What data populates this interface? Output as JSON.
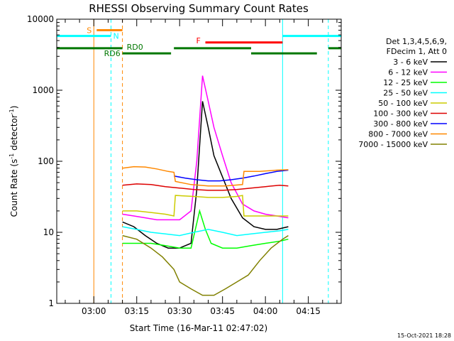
{
  "chart_data": {
    "type": "line",
    "title": "RHESSI Observing Summary Count Rates",
    "xlabel": "Start Time (16-Mar-11 02:47:02)",
    "ylabel_main": "Count Rate (s",
    "ylabel_sup1": "-1",
    "ylabel_mid": " detector",
    "ylabel_sup2": "-1",
    "ylabel_end": ")",
    "y_scale": "log",
    "ylim": [
      1,
      10000
    ],
    "xlim": [
      "02:47:02",
      "04:26:30"
    ],
    "x_ticks": [
      "03:00",
      "03:15",
      "03:30",
      "03:45",
      "04:00",
      "04:15"
    ],
    "y_ticks": [
      "1",
      "10",
      "100",
      "1000",
      "10000"
    ],
    "grid": false,
    "legend_header": [
      "Det 1,3,4,5,6,9,",
      "FDecim 1, Att 0"
    ],
    "series": [
      {
        "name": "3 - 6 keV",
        "color": "#000000",
        "points": [
          [
            "03:10",
            14
          ],
          [
            "03:14",
            12
          ],
          [
            "03:18",
            9
          ],
          [
            "03:22",
            7
          ],
          [
            "03:26",
            6
          ],
          [
            "03:30",
            6
          ],
          [
            "03:34",
            7
          ],
          [
            "03:36",
            40
          ],
          [
            "03:38",
            700
          ],
          [
            "03:40",
            300
          ],
          [
            "03:42",
            120
          ],
          [
            "03:45",
            60
          ],
          [
            "03:48",
            30
          ],
          [
            "03:52",
            16
          ],
          [
            "03:56",
            12
          ],
          [
            "04:00",
            11
          ],
          [
            "04:04",
            11
          ],
          [
            "04:08",
            12
          ]
        ]
      },
      {
        "name": "6 - 12 keV",
        "color": "#ff00ff",
        "points": [
          [
            "03:10",
            18
          ],
          [
            "03:14",
            17
          ],
          [
            "03:18",
            16
          ],
          [
            "03:22",
            15
          ],
          [
            "03:26",
            15
          ],
          [
            "03:30",
            15
          ],
          [
            "03:34",
            20
          ],
          [
            "03:36",
            100
          ],
          [
            "03:38",
            1600
          ],
          [
            "03:40",
            700
          ],
          [
            "03:42",
            300
          ],
          [
            "03:45",
            120
          ],
          [
            "03:48",
            50
          ],
          [
            "03:52",
            25
          ],
          [
            "03:56",
            20
          ],
          [
            "04:00",
            18
          ],
          [
            "04:04",
            17
          ],
          [
            "04:08",
            16
          ]
        ]
      },
      {
        "name": "12 - 25 keV",
        "color": "#00ff00",
        "points": [
          [
            "03:10",
            7
          ],
          [
            "03:15",
            7
          ],
          [
            "03:20",
            7
          ],
          [
            "03:25",
            6.5
          ],
          [
            "03:30",
            6
          ],
          [
            "03:34",
            6
          ],
          [
            "03:37",
            20
          ],
          [
            "03:39",
            11
          ],
          [
            "03:41",
            7
          ],
          [
            "03:45",
            6
          ],
          [
            "03:50",
            6
          ],
          [
            "03:55",
            6.5
          ],
          [
            "04:00",
            7
          ],
          [
            "04:05",
            7.5
          ],
          [
            "04:08",
            8
          ]
        ]
      },
      {
        "name": "25 - 50 keV",
        "color": "#00ffff",
        "points": [
          [
            "03:10",
            12
          ],
          [
            "03:15",
            11
          ],
          [
            "03:20",
            10
          ],
          [
            "03:25",
            9.5
          ],
          [
            "03:30",
            9
          ],
          [
            "03:35",
            10
          ],
          [
            "03:40",
            11
          ],
          [
            "03:45",
            10
          ],
          [
            "03:50",
            9
          ],
          [
            "03:55",
            9.5
          ],
          [
            "04:00",
            10
          ],
          [
            "04:05",
            10.5
          ],
          [
            "04:08",
            11
          ]
        ]
      },
      {
        "name": "50 - 100 keV",
        "color": "#cccc00",
        "points": [
          [
            "03:10",
            20
          ],
          [
            "03:15",
            20
          ],
          [
            "03:20",
            19
          ],
          [
            "03:25",
            18
          ],
          [
            "03:28",
            17
          ],
          [
            "03:28.5",
            33
          ],
          [
            "03:35",
            32
          ],
          [
            "03:40",
            31
          ],
          [
            "03:45",
            31
          ],
          [
            "03:50",
            32
          ],
          [
            "03:52",
            33
          ],
          [
            "03:52.5",
            17
          ],
          [
            "03:58",
            17
          ],
          [
            "04:02",
            17
          ],
          [
            "04:08",
            17
          ]
        ]
      },
      {
        "name": "100 - 300 keV",
        "color": "#dd0000",
        "points": [
          [
            "03:10",
            46
          ],
          [
            "03:15",
            48
          ],
          [
            "03:20",
            47
          ],
          [
            "03:25",
            44
          ],
          [
            "03:30",
            42
          ],
          [
            "03:35",
            40
          ],
          [
            "03:40",
            39
          ],
          [
            "03:45",
            39
          ],
          [
            "03:50",
            40
          ],
          [
            "03:55",
            42
          ],
          [
            "04:00",
            44
          ],
          [
            "04:05",
            46
          ],
          [
            "04:08",
            45
          ]
        ]
      },
      {
        "name": "300 - 800 keV",
        "color": "#0000ff",
        "points": [
          [
            "03:28",
            62
          ],
          [
            "03:32",
            58
          ],
          [
            "03:36",
            55
          ],
          [
            "03:40",
            53
          ],
          [
            "03:44",
            53
          ],
          [
            "03:48",
            55
          ],
          [
            "03:52",
            58
          ],
          [
            "03:56",
            62
          ],
          [
            "04:00",
            67
          ],
          [
            "04:04",
            72
          ],
          [
            "04:08",
            75
          ]
        ]
      },
      {
        "name": "800 - 7000 keV",
        "color": "#ff8800",
        "points": [
          [
            "03:10",
            80
          ],
          [
            "03:14",
            84
          ],
          [
            "03:18",
            83
          ],
          [
            "03:22",
            78
          ],
          [
            "03:26",
            72
          ],
          [
            "03:28",
            70
          ],
          [
            "03:28.5",
            52
          ],
          [
            "03:34",
            47
          ],
          [
            "03:40",
            45
          ],
          [
            "03:46",
            45
          ],
          [
            "03:52",
            47
          ],
          [
            "03:52.5",
            72
          ],
          [
            "03:58",
            72
          ],
          [
            "04:04",
            75
          ],
          [
            "04:08",
            76
          ]
        ]
      },
      {
        "name": "7000 - 15000 keV",
        "color": "#808000",
        "points": [
          [
            "03:10",
            9
          ],
          [
            "03:15",
            8
          ],
          [
            "03:20",
            6
          ],
          [
            "03:24",
            4.5
          ],
          [
            "03:28",
            3
          ],
          [
            "03:30",
            2
          ],
          [
            "03:34",
            1.6
          ],
          [
            "03:38",
            1.3
          ],
          [
            "03:42",
            1.3
          ],
          [
            "03:46",
            1.6
          ],
          [
            "03:50",
            2
          ],
          [
            "03:54",
            2.5
          ],
          [
            "03:58",
            4
          ],
          [
            "04:02",
            6
          ],
          [
            "04:06",
            8
          ],
          [
            "04:08",
            9
          ]
        ]
      }
    ],
    "state_bars": [
      {
        "label": "S",
        "color": "#ff8800",
        "level": 7000,
        "intervals": [
          [
            "03:01",
            "03:10"
          ]
        ]
      },
      {
        "label": "N",
        "color": "#00ffff",
        "level": 5800,
        "intervals": [
          [
            "02:47:02",
            "03:06"
          ],
          [
            "04:06",
            "04:26:30"
          ]
        ]
      },
      {
        "label": "F",
        "color": "#ff0000",
        "level": 4700,
        "intervals": [
          [
            "03:39",
            "04:06"
          ]
        ]
      },
      {
        "label": "RD0",
        "color": "#007700",
        "level": 3900,
        "intervals": [
          [
            "02:47:02",
            "03:10"
          ],
          [
            "03:28",
            "03:55"
          ],
          [
            "04:22",
            "04:26:30"
          ]
        ]
      },
      {
        "label": "RD6",
        "color": "#007700",
        "level": 3300,
        "intervals": [
          [
            "03:10",
            "03:27"
          ],
          [
            "03:55",
            "04:18"
          ]
        ]
      }
    ],
    "vertical_lines": [
      {
        "time": "02:47:02",
        "color": "#00ffff",
        "style": "solid"
      },
      {
        "time": "03:00",
        "color": "#ff8800",
        "style": "solid"
      },
      {
        "time": "03:06",
        "color": "#00ffff",
        "style": "dashed"
      },
      {
        "time": "03:10",
        "color": "#ff8800",
        "style": "dashed"
      },
      {
        "time": "04:06",
        "color": "#00ffff",
        "style": "solid"
      },
      {
        "time": "04:22",
        "color": "#00ffff",
        "style": "dashed"
      }
    ]
  },
  "footer_date": "15-Oct-2021 18:28"
}
